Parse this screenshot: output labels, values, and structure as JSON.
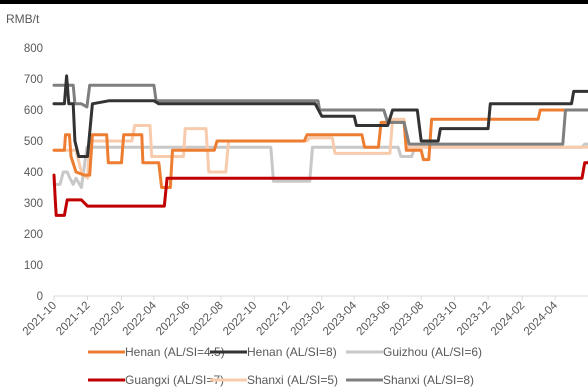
{
  "chart_data": {
    "type": "line",
    "unit_label": "RMB/t",
    "ylim": [
      0,
      800
    ],
    "yticks": [
      0,
      100,
      200,
      300,
      400,
      500,
      600,
      700,
      800
    ],
    "xlim": [
      "2021-10-01",
      "2024-05-31"
    ],
    "xtick_labels": [
      "2021-10",
      "2021-12",
      "2022-02",
      "2022-04",
      "2022-06",
      "2022-08",
      "2022-10",
      "2022-12",
      "2023-02",
      "2023-04",
      "2023-06",
      "2023-08",
      "2023-10",
      "2023-12",
      "2024-02",
      "2024-04"
    ],
    "grid": false,
    "legend_position": "bottom",
    "series": [
      {
        "name": "Henan (AL/SI=4.5)",
        "color": "#ED7D31",
        "points": [
          [
            "2021-10-01",
            470
          ],
          [
            "2021-10-20",
            470
          ],
          [
            "2021-10-22",
            520
          ],
          [
            "2021-10-29",
            520
          ],
          [
            "2021-11-01",
            450
          ],
          [
            "2021-11-10",
            400
          ],
          [
            "2021-11-25",
            390
          ],
          [
            "2021-12-05",
            390
          ],
          [
            "2021-12-10",
            520
          ],
          [
            "2022-01-05",
            520
          ],
          [
            "2022-01-08",
            430
          ],
          [
            "2022-02-01",
            430
          ],
          [
            "2022-02-05",
            520
          ],
          [
            "2022-03-10",
            520
          ],
          [
            "2022-03-12",
            430
          ],
          [
            "2022-04-10",
            430
          ],
          [
            "2022-04-15",
            350
          ],
          [
            "2022-05-01",
            350
          ],
          [
            "2022-05-05",
            470
          ],
          [
            "2022-07-20",
            470
          ],
          [
            "2022-07-25",
            500
          ],
          [
            "2022-12-31",
            500
          ],
          [
            "2023-01-05",
            520
          ],
          [
            "2023-04-15",
            520
          ],
          [
            "2023-04-20",
            480
          ],
          [
            "2023-05-15",
            480
          ],
          [
            "2023-05-20",
            560
          ],
          [
            "2023-07-01",
            560
          ],
          [
            "2023-07-05",
            470
          ],
          [
            "2023-08-01",
            470
          ],
          [
            "2023-08-05",
            440
          ],
          [
            "2023-08-15",
            440
          ],
          [
            "2023-08-20",
            570
          ],
          [
            "2024-03-01",
            570
          ],
          [
            "2024-03-05",
            600
          ],
          [
            "2024-05-31",
            600
          ]
        ]
      },
      {
        "name": "Henan (AL/SI=8)",
        "color": "#333333",
        "points": [
          [
            "2021-10-01",
            620
          ],
          [
            "2021-10-20",
            620
          ],
          [
            "2021-10-24",
            710
          ],
          [
            "2021-10-28",
            620
          ],
          [
            "2021-11-05",
            620
          ],
          [
            "2021-11-08",
            500
          ],
          [
            "2021-11-15",
            450
          ],
          [
            "2021-12-01",
            450
          ],
          [
            "2021-12-10",
            620
          ],
          [
            "2022-01-10",
            630
          ],
          [
            "2022-04-01",
            630
          ],
          [
            "2022-04-10",
            620
          ],
          [
            "2023-01-20",
            620
          ],
          [
            "2023-02-01",
            580
          ],
          [
            "2023-04-01",
            580
          ],
          [
            "2023-04-05",
            550
          ],
          [
            "2023-06-01",
            550
          ],
          [
            "2023-06-10",
            600
          ],
          [
            "2023-07-25",
            600
          ],
          [
            "2023-08-01",
            500
          ],
          [
            "2023-09-01",
            500
          ],
          [
            "2023-09-05",
            540
          ],
          [
            "2023-12-01",
            540
          ],
          [
            "2023-12-05",
            620
          ],
          [
            "2024-05-01",
            620
          ],
          [
            "2024-05-05",
            660
          ],
          [
            "2024-05-31",
            660
          ]
        ]
      },
      {
        "name": "Guizhou (AL/SI=6)",
        "color": "#C8C8C8",
        "points": [
          [
            "2021-10-01",
            360
          ],
          [
            "2021-10-12",
            360
          ],
          [
            "2021-10-18",
            400
          ],
          [
            "2021-10-25",
            400
          ],
          [
            "2021-10-30",
            380
          ],
          [
            "2021-11-05",
            360
          ],
          [
            "2021-11-10",
            380
          ],
          [
            "2021-11-20",
            350
          ],
          [
            "2021-11-30",
            480
          ],
          [
            "2022-10-31",
            480
          ],
          [
            "2022-11-05",
            370
          ],
          [
            "2023-01-10",
            370
          ],
          [
            "2023-01-15",
            480
          ],
          [
            "2023-06-20",
            480
          ],
          [
            "2023-06-25",
            450
          ],
          [
            "2023-07-15",
            450
          ],
          [
            "2023-07-20",
            480
          ],
          [
            "2024-05-20",
            480
          ],
          [
            "2024-05-25",
            490
          ],
          [
            "2024-05-31",
            490
          ]
        ]
      },
      {
        "name": "Guangxi (AL/SI=7)",
        "color": "#C00000",
        "points": [
          [
            "2021-10-01",
            390
          ],
          [
            "2021-10-03",
            320
          ],
          [
            "2021-10-05",
            260
          ],
          [
            "2021-10-20",
            260
          ],
          [
            "2021-10-25",
            310
          ],
          [
            "2021-11-20",
            310
          ],
          [
            "2021-12-01",
            290
          ],
          [
            "2022-04-20",
            290
          ],
          [
            "2022-04-25",
            380
          ],
          [
            "2024-05-20",
            380
          ],
          [
            "2024-05-25",
            430
          ],
          [
            "2024-05-31",
            430
          ]
        ]
      },
      {
        "name": "Shanxi (AL/SI=5)",
        "color": "#F8CBAD",
        "points": [
          [
            "2021-10-01",
            470
          ],
          [
            "2021-11-10",
            470
          ],
          [
            "2021-11-20",
            400
          ],
          [
            "2021-12-01",
            380
          ],
          [
            "2021-12-05",
            500
          ],
          [
            "2022-02-20",
            500
          ],
          [
            "2022-02-25",
            550
          ],
          [
            "2022-03-25",
            550
          ],
          [
            "2022-03-28",
            450
          ],
          [
            "2022-05-25",
            450
          ],
          [
            "2022-05-28",
            540
          ],
          [
            "2022-07-05",
            540
          ],
          [
            "2022-07-10",
            400
          ],
          [
            "2022-08-10",
            400
          ],
          [
            "2022-08-15",
            500
          ],
          [
            "2023-01-05",
            500
          ],
          [
            "2023-01-10",
            510
          ],
          [
            "2023-02-20",
            510
          ],
          [
            "2023-02-25",
            460
          ],
          [
            "2023-06-05",
            460
          ],
          [
            "2023-06-10",
            570
          ],
          [
            "2023-07-01",
            570
          ],
          [
            "2023-07-05",
            480
          ],
          [
            "2024-05-31",
            480
          ]
        ]
      },
      {
        "name": "Shanxi (AL/SI=8)",
        "color": "#7F7F7F",
        "points": [
          [
            "2021-10-01",
            680
          ],
          [
            "2021-11-05",
            680
          ],
          [
            "2021-11-08",
            620
          ],
          [
            "2021-11-20",
            620
          ],
          [
            "2021-11-30",
            610
          ],
          [
            "2021-12-05",
            680
          ],
          [
            "2022-04-01",
            680
          ],
          [
            "2022-04-05",
            630
          ],
          [
            "2023-01-25",
            630
          ],
          [
            "2023-01-28",
            600
          ],
          [
            "2023-05-25",
            600
          ],
          [
            "2023-06-01",
            560
          ],
          [
            "2023-07-01",
            560
          ],
          [
            "2023-07-10",
            490
          ],
          [
            "2024-04-15",
            490
          ],
          [
            "2024-04-20",
            600
          ],
          [
            "2024-05-31",
            600
          ]
        ]
      }
    ]
  }
}
